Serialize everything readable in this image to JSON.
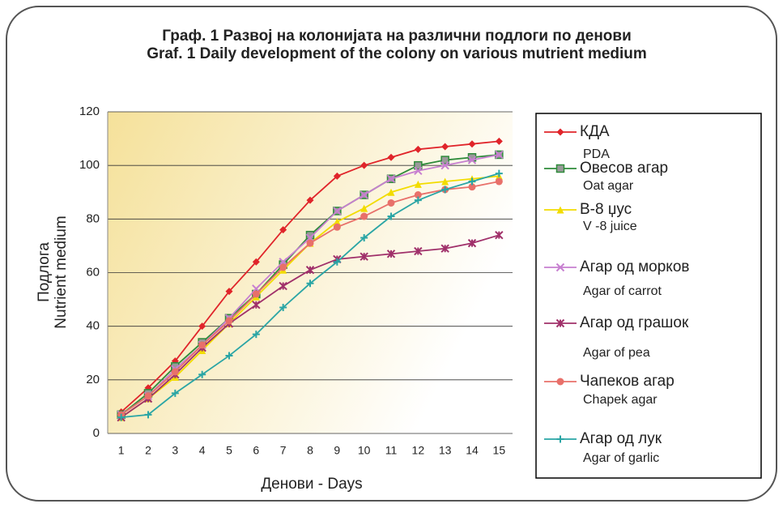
{
  "chart_data": {
    "type": "line",
    "title": "Граф. 1 Развој на колонијата на различни подлоги по денови",
    "subtitle": "Graf. 1 Daily development of the colony on various mutrient medium",
    "y_label": [
      "Подлога",
      "Nutrient medium"
    ],
    "x_label": "Денови -  Days",
    "categories": [
      "1",
      "2",
      "3",
      "4",
      "5",
      "6",
      "7",
      "8",
      "9",
      "10",
      "11",
      "12",
      "13",
      "14",
      "15"
    ],
    "ylim": [
      0,
      120
    ],
    "yticks": [
      0,
      20,
      40,
      60,
      80,
      100,
      120
    ],
    "grid": true,
    "series": [
      {
        "name": "КДА",
        "label_en": "PDA",
        "color": "#e0242a",
        "marker": "diamond",
        "values": [
          8,
          17,
          27,
          40,
          53,
          64,
          76,
          87,
          96,
          100,
          103,
          106,
          107,
          108,
          109
        ]
      },
      {
        "name": "Овесов агар",
        "label_en": "Oat agar",
        "color": "#2e8b3a",
        "marker": "square",
        "values": [
          7,
          15,
          25,
          34,
          43,
          52,
          63,
          74,
          83,
          89,
          95,
          100,
          102,
          103,
          104
        ]
      },
      {
        "name": "B-8 џус",
        "label_en": "V -8 juice",
        "color": "#f2dc00",
        "marker": "triangle",
        "values": [
          6,
          13,
          21,
          31,
          41,
          51,
          61,
          71,
          79,
          84,
          90,
          93,
          94,
          95,
          96
        ]
      },
      {
        "name": "Агар од морков",
        "label_en": "Agar of carrot",
        "color": "#c77fd0",
        "marker": "x",
        "values": [
          7,
          14,
          24,
          33,
          43,
          54,
          64,
          73,
          83,
          89,
          95,
          98,
          100,
          102,
          104
        ]
      },
      {
        "name": "Агар од грашок",
        "label_en": "Agar of pea",
        "color": "#a0306a",
        "marker": "star",
        "values": [
          6,
          13,
          22,
          32,
          41,
          48,
          55,
          61,
          65,
          66,
          67,
          68,
          69,
          71,
          74
        ]
      },
      {
        "name": "Чапеков агар",
        "label_en": "Chapek agar",
        "color": "#e8706a",
        "marker": "circle",
        "values": [
          7,
          14,
          23,
          33,
          42,
          52,
          62,
          71,
          77,
          81,
          86,
          89,
          91,
          92,
          94
        ]
      },
      {
        "name": "Агар од лук",
        "label_en": "Agar of garlic",
        "color": "#2aa5a5",
        "marker": "plus",
        "values": [
          6,
          7,
          15,
          22,
          29,
          37,
          47,
          56,
          64,
          73,
          81,
          87,
          91,
          94,
          97
        ]
      }
    ]
  }
}
